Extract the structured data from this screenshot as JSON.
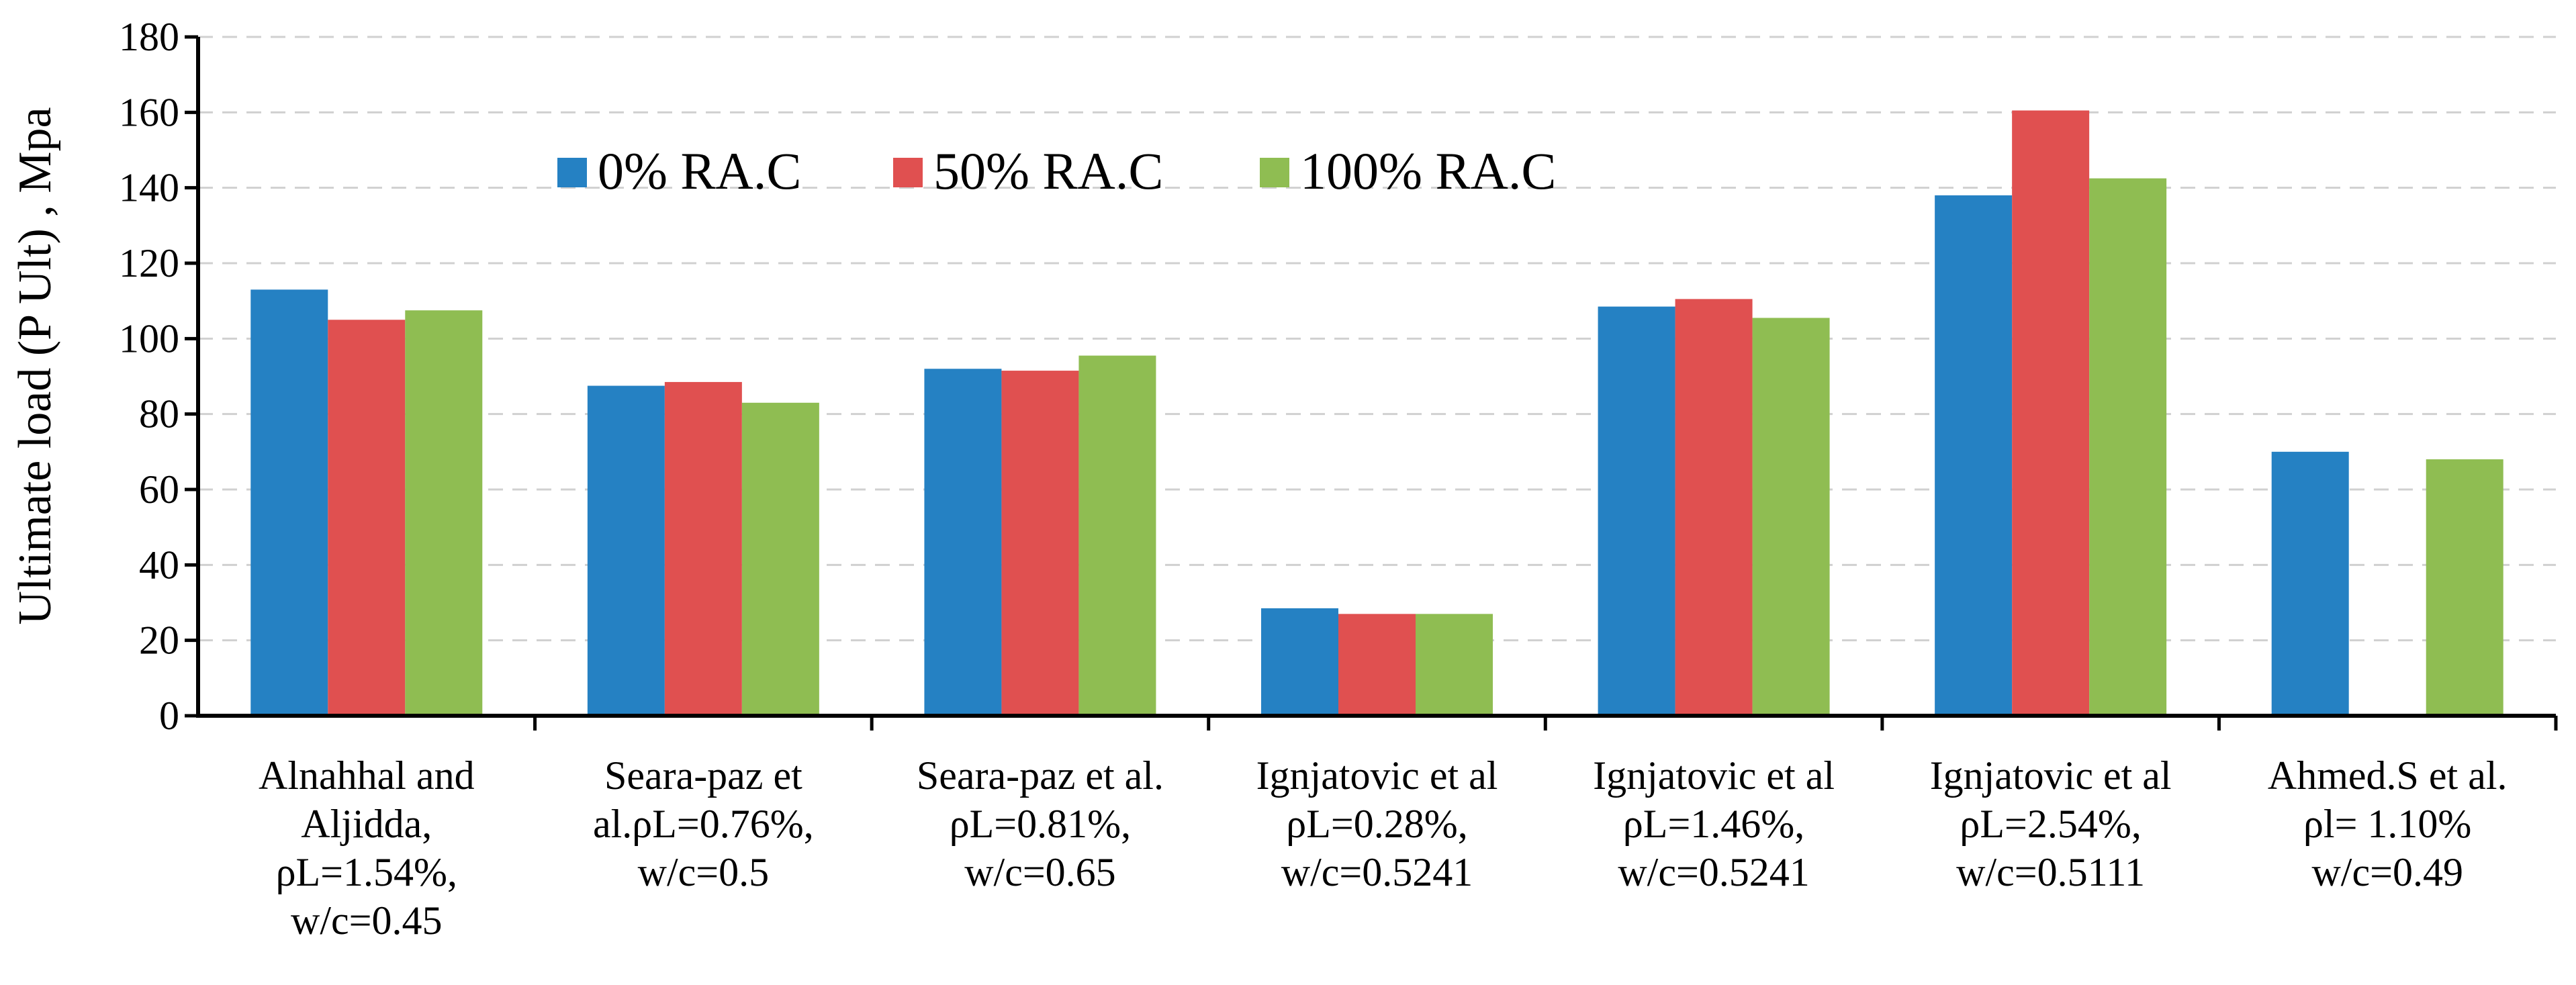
{
  "chart_data": {
    "type": "bar",
    "title": "",
    "xlabel": "",
    "ylabel": "Ultimate load (P Ult) , Mpa",
    "ylim": [
      0,
      180
    ],
    "yticks": [
      0,
      20,
      40,
      60,
      80,
      100,
      120,
      140,
      160,
      180
    ],
    "grid": true,
    "legend_position": "top-left",
    "categories": [
      [
        "Alnahhal and",
        "Aljidda,",
        "ρL=1.54%,",
        "w/c=0.45"
      ],
      [
        "Seara-paz et",
        "al.ρL=0.76%,",
        "w/c=0.5"
      ],
      [
        "Seara-paz et al.",
        "ρL=0.81%,",
        "w/c=0.65"
      ],
      [
        "Ignjatovic et al",
        "ρL=0.28%,",
        "w/c=0.5241"
      ],
      [
        "Ignjatovic et al",
        "ρL=1.46%,",
        "w/c=0.5241"
      ],
      [
        "Ignjatovic et al",
        "ρL=2.54%,",
        "w/c=0.5111"
      ],
      [
        "Ahmed.S et al.",
        "ρl= 1.10%",
        "w/c=0.49"
      ]
    ],
    "series": [
      {
        "name": "0% RA.C",
        "color": "#2581C3",
        "values": [
          113,
          87.5,
          92,
          28.5,
          108.5,
          138,
          70
        ]
      },
      {
        "name": "50% RA.C",
        "color": "#E05050",
        "values": [
          105,
          88.5,
          91.5,
          27,
          110.5,
          160.5,
          null
        ]
      },
      {
        "name": "100% RA.C",
        "color": "#8FBD52",
        "values": [
          107.5,
          83,
          95.5,
          27,
          105.5,
          142.5,
          68
        ]
      }
    ]
  }
}
